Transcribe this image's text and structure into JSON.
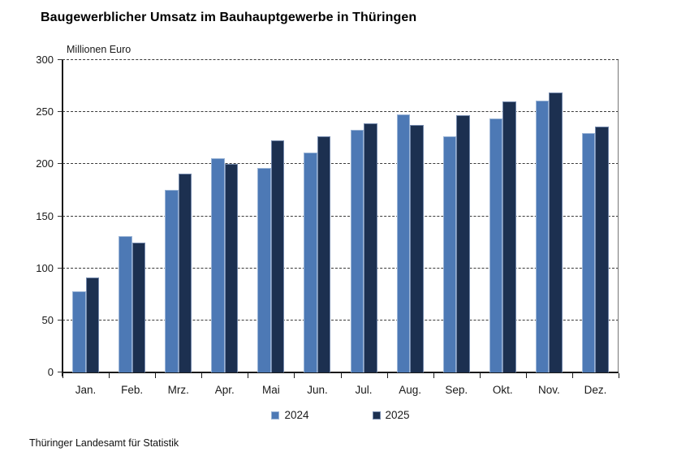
{
  "title": "Baugewerblicher Umsatz im Bauhauptgewerbe in Thüringen",
  "source": "Thüringer Landesamt für Statistik",
  "chart_data": {
    "type": "bar",
    "title": "Baugewerblicher Umsatz im Bauhauptgewerbe in Thüringen",
    "unit_label": "Millionen Euro",
    "xlabel": "",
    "ylabel": "Millionen Euro",
    "ylim": [
      0,
      300
    ],
    "ytick_step": 50,
    "yticks": [
      0,
      50,
      100,
      150,
      200,
      250,
      300
    ],
    "grid": "dashed-horizontal",
    "legend_position": "bottom-center",
    "categories": [
      "Jan.",
      "Feb.",
      "Mrz.",
      "Apr.",
      "Mai",
      "Jun.",
      "Jul.",
      "Aug.",
      "Sep.",
      "Okt.",
      "Nov.",
      "Dez."
    ],
    "series": [
      {
        "name": "2024",
        "color": "#4D79B5",
        "border_color": "#9AB4D6",
        "values": [
          78,
          131,
          175,
          206,
          196,
          211,
          233,
          248,
          227,
          244,
          261,
          230
        ]
      },
      {
        "name": "2025",
        "color": "#1C3050",
        "border_color": "#7489AC",
        "values": [
          91,
          125,
          191,
          200,
          223,
          227,
          239,
          238,
          247,
          260,
          269,
          236
        ]
      }
    ],
    "colors": {
      "axis": "#1a1a1a",
      "gridline": "#3a3a3a",
      "plot_right_border": "#777777",
      "background": "#ffffff"
    }
  }
}
